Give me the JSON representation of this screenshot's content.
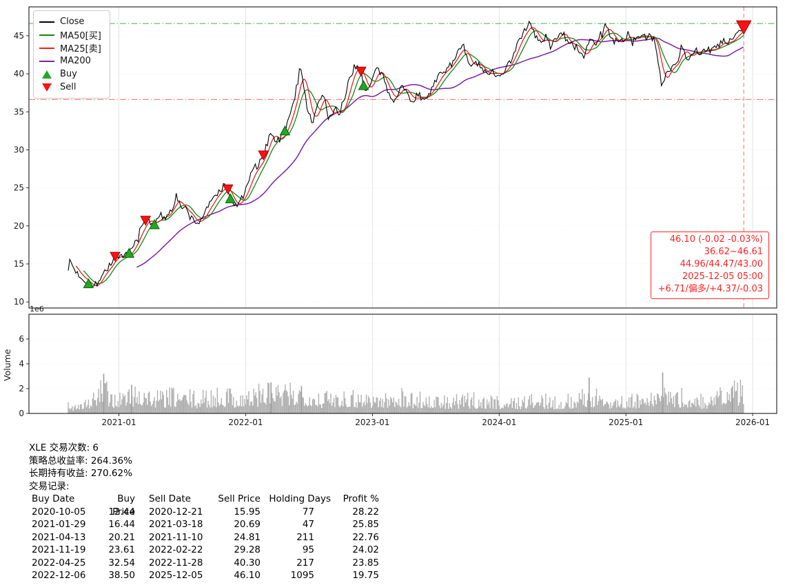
{
  "chart_data": {
    "type": "line",
    "symbol": "XLE",
    "t_range": [
      2020.29,
      2026.19
    ],
    "ylim": [
      9.2,
      48.8
    ],
    "y_ticks": [
      10,
      15,
      20,
      25,
      30,
      35,
      40,
      45
    ],
    "x_ticks": [
      {
        "t": 2021,
        "label": "2021-01"
      },
      {
        "t": 2022,
        "label": "2022-01"
      },
      {
        "t": 2023,
        "label": "2023-01"
      },
      {
        "t": 2024,
        "label": "2024-01"
      },
      {
        "t": 2025,
        "label": "2025-01"
      },
      {
        "t": 2026,
        "label": "2026-01"
      }
    ],
    "series": [
      {
        "name": "Close",
        "color": "#000000"
      },
      {
        "name": "MA50[买]",
        "color": "#148414",
        "window_days": 50
      },
      {
        "name": "MA25[卖]",
        "color": "#e62222",
        "window_days": 25
      },
      {
        "name": "MA200",
        "color": "#7b1fa2",
        "window_days": 200
      }
    ],
    "close_points": [
      [
        2020.6,
        15.0
      ],
      [
        2020.62,
        15.3
      ],
      [
        2020.65,
        14.2
      ],
      [
        2020.68,
        13.6
      ],
      [
        2020.72,
        13.0
      ],
      [
        2020.76,
        12.44
      ],
      [
        2020.79,
        11.9
      ],
      [
        2020.82,
        12.1
      ],
      [
        2020.85,
        13.2
      ],
      [
        2020.88,
        13.9
      ],
      [
        2020.92,
        14.6
      ],
      [
        2020.95,
        15.5
      ],
      [
        2020.97,
        15.95
      ],
      [
        2021.0,
        16.1
      ],
      [
        2021.03,
        15.7
      ],
      [
        2021.06,
        16.0
      ],
      [
        2021.08,
        16.44
      ],
      [
        2021.11,
        17.2
      ],
      [
        2021.14,
        18.3
      ],
      [
        2021.17,
        19.5
      ],
      [
        2021.21,
        20.69
      ],
      [
        2021.23,
        21.1
      ],
      [
        2021.25,
        20.4
      ],
      [
        2021.28,
        20.21
      ],
      [
        2021.31,
        20.9
      ],
      [
        2021.33,
        21.4
      ],
      [
        2021.36,
        20.9
      ],
      [
        2021.4,
        22.0
      ],
      [
        2021.44,
        23.3
      ],
      [
        2021.47,
        23.6
      ],
      [
        2021.5,
        22.0
      ],
      [
        2021.53,
        22.4
      ],
      [
        2021.56,
        21.2
      ],
      [
        2021.6,
        20.6
      ],
      [
        2021.63,
        20.3
      ],
      [
        2021.67,
        21.6
      ],
      [
        2021.7,
        22.4
      ],
      [
        2021.73,
        23.2
      ],
      [
        2021.76,
        24.1
      ],
      [
        2021.8,
        24.7
      ],
      [
        2021.83,
        25.3
      ],
      [
        2021.86,
        24.81
      ],
      [
        2021.88,
        23.61
      ],
      [
        2021.91,
        22.5
      ],
      [
        2021.94,
        23.0
      ],
      [
        2021.97,
        23.6
      ],
      [
        2022.0,
        24.6
      ],
      [
        2022.03,
        26.3
      ],
      [
        2022.06,
        27.2
      ],
      [
        2022.09,
        27.8
      ],
      [
        2022.12,
        28.6
      ],
      [
        2022.14,
        29.28
      ],
      [
        2022.17,
        30.8
      ],
      [
        2022.2,
        32.6
      ],
      [
        2022.23,
        31.4
      ],
      [
        2022.26,
        31.0
      ],
      [
        2022.29,
        32.0
      ],
      [
        2022.31,
        32.54
      ],
      [
        2022.34,
        34.2
      ],
      [
        2022.37,
        35.6
      ],
      [
        2022.4,
        37.8
      ],
      [
        2022.43,
        40.9
      ],
      [
        2022.45,
        39.6
      ],
      [
        2022.48,
        36.0
      ],
      [
        2022.51,
        34.2
      ],
      [
        2022.53,
        33.6
      ],
      [
        2022.56,
        35.3
      ],
      [
        2022.59,
        36.8
      ],
      [
        2022.62,
        37.3
      ],
      [
        2022.65,
        34.2
      ],
      [
        2022.68,
        34.8
      ],
      [
        2022.71,
        35.6
      ],
      [
        2022.74,
        34.2
      ],
      [
        2022.77,
        36.0
      ],
      [
        2022.8,
        38.2
      ],
      [
        2022.83,
        39.6
      ],
      [
        2022.86,
        41.2
      ],
      [
        2022.89,
        40.8
      ],
      [
        2022.91,
        40.3
      ],
      [
        2022.93,
        38.5
      ],
      [
        2022.96,
        37.6
      ],
      [
        2022.99,
        38.8
      ],
      [
        2023.02,
        40.3
      ],
      [
        2023.05,
        40.6
      ],
      [
        2023.08,
        39.4
      ],
      [
        2023.11,
        38.2
      ],
      [
        2023.14,
        37.0
      ],
      [
        2023.17,
        36.6
      ],
      [
        2023.2,
        37.6
      ],
      [
        2023.23,
        38.4
      ],
      [
        2023.26,
        37.8
      ],
      [
        2023.29,
        36.9
      ],
      [
        2023.32,
        36.5
      ],
      [
        2023.35,
        37.1
      ],
      [
        2023.38,
        36.8
      ],
      [
        2023.42,
        37.0
      ],
      [
        2023.45,
        37.6
      ],
      [
        2023.48,
        38.3
      ],
      [
        2023.52,
        39.6
      ],
      [
        2023.55,
        40.2
      ],
      [
        2023.58,
        40.6
      ],
      [
        2023.62,
        41.2
      ],
      [
        2023.65,
        42.3
      ],
      [
        2023.69,
        43.2
      ],
      [
        2023.72,
        43.5
      ],
      [
        2023.75,
        41.8
      ],
      [
        2023.78,
        40.8
      ],
      [
        2023.82,
        41.6
      ],
      [
        2023.85,
        40.9
      ],
      [
        2023.88,
        40.2
      ],
      [
        2023.92,
        39.8
      ],
      [
        2023.95,
        40.3
      ],
      [
        2023.98,
        39.9
      ],
      [
        2024.02,
        40.0
      ],
      [
        2024.05,
        40.8
      ],
      [
        2024.09,
        41.6
      ],
      [
        2024.12,
        43.0
      ],
      [
        2024.16,
        44.6
      ],
      [
        2024.2,
        45.6
      ],
      [
        2024.24,
        46.6
      ],
      [
        2024.27,
        45.6
      ],
      [
        2024.3,
        44.6
      ],
      [
        2024.34,
        44.0
      ],
      [
        2024.37,
        44.9
      ],
      [
        2024.41,
        43.8
      ],
      [
        2024.45,
        44.6
      ],
      [
        2024.48,
        45.7
      ],
      [
        2024.52,
        44.9
      ],
      [
        2024.55,
        43.6
      ],
      [
        2024.59,
        44.1
      ],
      [
        2024.62,
        43.4
      ],
      [
        2024.66,
        42.0
      ],
      [
        2024.7,
        43.4
      ],
      [
        2024.73,
        44.6
      ],
      [
        2024.77,
        44.0
      ],
      [
        2024.8,
        45.2
      ],
      [
        2024.84,
        46.4
      ],
      [
        2024.87,
        45.4
      ],
      [
        2024.91,
        44.3
      ],
      [
        2024.95,
        44.0
      ],
      [
        2024.98,
        44.6
      ],
      [
        2025.02,
        45.1
      ],
      [
        2025.05,
        44.4
      ],
      [
        2025.09,
        44.8
      ],
      [
        2025.13,
        45.3
      ],
      [
        2025.16,
        44.6
      ],
      [
        2025.2,
        45.0
      ],
      [
        2025.23,
        44.2
      ],
      [
        2025.26,
        41.0
      ],
      [
        2025.28,
        38.4
      ],
      [
        2025.31,
        39.8
      ],
      [
        2025.34,
        40.6
      ],
      [
        2025.38,
        41.2
      ],
      [
        2025.41,
        41.6
      ],
      [
        2025.44,
        44.0
      ],
      [
        2025.46,
        42.8
      ],
      [
        2025.49,
        42.0
      ],
      [
        2025.52,
        42.6
      ],
      [
        2025.56,
        43.1
      ],
      [
        2025.59,
        42.7
      ],
      [
        2025.63,
        43.4
      ],
      [
        2025.66,
        43.0
      ],
      [
        2025.7,
        43.3
      ],
      [
        2025.73,
        43.8
      ],
      [
        2025.77,
        44.3
      ],
      [
        2025.8,
        43.9
      ],
      [
        2025.84,
        44.6
      ],
      [
        2025.87,
        45.1
      ],
      [
        2025.9,
        45.6
      ],
      [
        2025.93,
        46.1
      ]
    ],
    "hlines": [
      {
        "y": 46.61,
        "color": "#2ca02c",
        "style": "dashdot"
      },
      {
        "y": 36.62,
        "color": "#ff5050",
        "style": "dashdot"
      }
    ],
    "vline": {
      "t": 2025.93,
      "color": "#ff6b6b",
      "style": "dashed"
    },
    "buys": [
      {
        "t": 2020.76,
        "price": 12.44
      },
      {
        "t": 2021.08,
        "price": 16.44
      },
      {
        "t": 2021.28,
        "price": 20.21
      },
      {
        "t": 2021.88,
        "price": 23.61
      },
      {
        "t": 2022.31,
        "price": 32.54
      },
      {
        "t": 2022.93,
        "price": 38.5
      }
    ],
    "sells": [
      {
        "t": 2020.97,
        "price": 15.95
      },
      {
        "t": 2021.21,
        "price": 20.69
      },
      {
        "t": 2021.86,
        "price": 24.81
      },
      {
        "t": 2022.14,
        "price": 29.28
      },
      {
        "t": 2022.91,
        "price": 40.3
      },
      {
        "t": 2025.93,
        "price": 46.1,
        "big": true
      }
    ],
    "marker_colors": {
      "buy": "#1faa1f",
      "buy_edge": "#0b5d0b",
      "sell": "#ff1111",
      "sell_edge": "#9c0000"
    },
    "volume": {
      "ylabel": "Volume",
      "offset_label": "1e6",
      "y_ticks": [
        0,
        2,
        4,
        6
      ],
      "ylim": [
        0,
        8
      ],
      "t0": 2020.62,
      "dt": 0.08333,
      "profile": [
        0.6,
        0.9,
        1.1,
        1.9,
        1.2,
        1.3,
        1.5,
        1.6,
        1.2,
        1.3,
        1.4,
        1.3,
        1.1,
        1.3,
        1.4,
        1.5,
        1.2,
        1.4,
        1.6,
        1.8,
        1.5,
        1.6,
        1.8,
        1.4,
        1.2,
        1.4,
        1.4,
        1.3,
        1.3,
        1.2,
        1.1,
        1.5,
        1.1,
        1.2,
        1.0,
        0.9,
        1.0,
        1.0,
        1.1,
        1.0,
        1.0,
        0.9,
        0.9,
        1.0,
        1.1,
        1.0,
        0.9,
        1.0,
        1.1,
        1.5,
        1.2,
        1.1,
        1.0,
        1.0,
        1.1,
        1.1,
        1.8,
        1.2,
        1.3,
        1.1,
        1.0,
        1.2,
        1.5,
        1.8,
        1.6
      ],
      "spikes": [
        [
          2020.88,
          3.2
        ],
        [
          2021.1,
          2.3
        ],
        [
          2022.2,
          2.5
        ],
        [
          2022.44,
          2.2
        ],
        [
          2024.71,
          2.9
        ],
        [
          2025.29,
          3.3
        ],
        [
          2025.84,
          2.2
        ]
      ],
      "bar_color": "#b0b0b0"
    }
  },
  "legend": {
    "items": [
      {
        "label": "Close",
        "type": "line",
        "color": "#000000"
      },
      {
        "label": "MA50[买]",
        "type": "line",
        "color": "#148414"
      },
      {
        "label": "MA25[卖]",
        "type": "line",
        "color": "#e62222"
      },
      {
        "label": "MA200",
        "type": "line",
        "color": "#7b1fa2"
      },
      {
        "label": "Buy",
        "type": "triangle-up",
        "color": "#1faa1f"
      },
      {
        "label": "Sell",
        "type": "triangle-down",
        "color": "#ff1111"
      }
    ]
  },
  "annotation": {
    "color": "#ff2222",
    "lines": [
      "46.10 (-0.02 -0.03%)",
      "36.62~46.61",
      "44.96/44.47/43.00",
      "2025-12-05 05:00",
      "+6.71/偏多/+4.37/-0.03"
    ]
  },
  "stats": {
    "trades_line": "XLE 交易次数: 6",
    "strategy_return_line": "策略总收益率: 264.36%",
    "hold_return_line": "长期持有收益: 270.62%",
    "records_label": "交易记录:"
  },
  "table": {
    "headers": [
      "Buy Date",
      "Buy Price",
      "Sell Date",
      "Sell Price",
      "Holding Days",
      "Profit %"
    ],
    "rows": [
      [
        "2020-10-05",
        "12.44",
        "2020-12-21",
        "15.95",
        "77",
        "28.22"
      ],
      [
        "2021-01-29",
        "16.44",
        "2021-03-18",
        "20.69",
        "47",
        "25.85"
      ],
      [
        "2021-04-13",
        "20.21",
        "2021-11-10",
        "24.81",
        "211",
        "22.76"
      ],
      [
        "2021-11-19",
        "23.61",
        "2022-02-22",
        "29.28",
        "95",
        "24.02"
      ],
      [
        "2022-04-25",
        "32.54",
        "2022-11-28",
        "40.30",
        "217",
        "23.85"
      ],
      [
        "2022-12-06",
        "38.50",
        "2025-12-05",
        "46.10",
        "1095",
        "19.75"
      ]
    ]
  }
}
